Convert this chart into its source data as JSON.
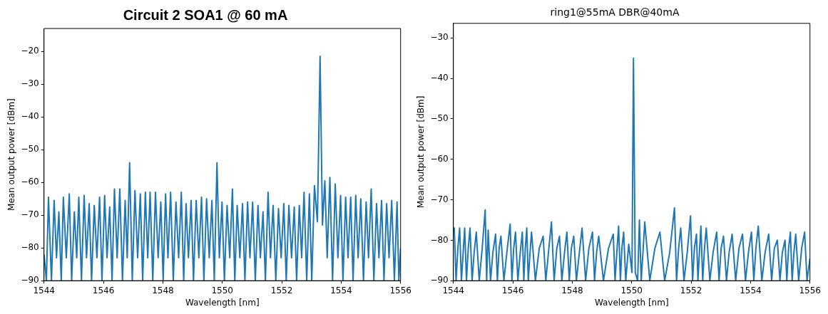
{
  "chart_data": [
    {
      "type": "line",
      "title": "Circuit 2 SOA1 @ 60 mA",
      "xlabel": "Wavelength [nm]",
      "ylabel": "Mean output power [dBm]",
      "xlim": [
        1544,
        1556
      ],
      "xticks": [
        1544,
        1546,
        1548,
        1550,
        1552,
        1554,
        1556
      ],
      "ylim": [
        -90,
        -13
      ],
      "yticks": [
        {
          "value": -90,
          "label": "−90"
        },
        {
          "value": -80,
          "label": "−80"
        },
        {
          "value": -70,
          "label": "−70"
        },
        {
          "value": -60,
          "label": "−60"
        },
        {
          "value": -50,
          "label": "−50"
        },
        {
          "value": -40,
          "label": "−40"
        },
        {
          "value": -30,
          "label": "−30"
        },
        {
          "value": -20,
          "label": "−20"
        }
      ],
      "marker": "none",
      "line_style": "solid",
      "series": [
        {
          "color": "#1f77b4",
          "x": [
            1544.0,
            1544.08,
            1544.15,
            1544.25,
            1544.34,
            1544.42,
            1544.5,
            1544.58,
            1544.65,
            1544.75,
            1544.85,
            1544.93,
            1545.02,
            1545.1,
            1545.17,
            1545.26,
            1545.35,
            1545.43,
            1545.52,
            1545.6,
            1545.69,
            1545.78,
            1545.87,
            1545.95,
            1546.04,
            1546.12,
            1546.21,
            1546.29,
            1546.37,
            1546.46,
            1546.55,
            1546.64,
            1546.73,
            1546.8,
            1546.88,
            1546.97,
            1547.06,
            1547.15,
            1547.24,
            1547.32,
            1547.41,
            1547.49,
            1547.57,
            1547.66,
            1547.75,
            1547.84,
            1547.93,
            1548.01,
            1548.09,
            1548.17,
            1548.26,
            1548.35,
            1548.44,
            1548.53,
            1548.62,
            1548.7,
            1548.78,
            1548.86,
            1548.95,
            1549.03,
            1549.12,
            1549.21,
            1549.3,
            1549.38,
            1549.47,
            1549.56,
            1549.65,
            1549.73,
            1549.82,
            1549.9,
            1549.99,
            1550.07,
            1550.16,
            1550.25,
            1550.34,
            1550.42,
            1550.5,
            1550.59,
            1550.68,
            1550.76,
            1550.85,
            1550.93,
            1551.02,
            1551.11,
            1551.2,
            1551.28,
            1551.37,
            1551.45,
            1551.54,
            1551.62,
            1551.71,
            1551.8,
            1551.89,
            1551.98,
            1552.07,
            1552.15,
            1552.24,
            1552.33,
            1552.42,
            1552.5,
            1552.59,
            1552.67,
            1552.75,
            1552.84,
            1552.93,
            1553.01,
            1553.1,
            1553.2,
            1553.29,
            1553.37,
            1553.45,
            1553.53,
            1553.62,
            1553.71,
            1553.8,
            1553.89,
            1553.98,
            1554.06,
            1554.15,
            1554.23,
            1554.32,
            1554.4,
            1554.49,
            1554.57,
            1554.66,
            1554.75,
            1554.84,
            1554.92,
            1555.01,
            1555.1,
            1555.19,
            1555.27,
            1555.36,
            1555.44,
            1555.53,
            1555.61,
            1555.7,
            1555.79,
            1555.88,
            1555.94,
            1556.0
          ],
          "values": [
            -82,
            -90,
            -64.5,
            -90,
            -65.5,
            -83,
            -69,
            -90,
            -64.5,
            -83,
            -63.5,
            -90,
            -69,
            -83,
            -64.5,
            -90,
            -64,
            -83,
            -66.5,
            -90,
            -67,
            -83,
            -64.5,
            -90,
            -64,
            -83,
            -67.5,
            -90,
            -62,
            -83,
            -62,
            -90,
            -65.5,
            -83,
            -54,
            -90,
            -62.5,
            -83,
            -63.5,
            -90,
            -63,
            -83,
            -63,
            -90,
            -63,
            -83,
            -66,
            -90,
            -63.5,
            -83,
            -63,
            -90,
            -66,
            -83,
            -63,
            -90,
            -66.5,
            -83,
            -65.5,
            -90,
            -65.5,
            -83,
            -64.5,
            -90,
            -65,
            -83,
            -65.5,
            -90,
            -54,
            -83,
            -66,
            -90,
            -67,
            -83,
            -62,
            -90,
            -67,
            -83,
            -66.5,
            -90,
            -66,
            -83,
            -66,
            -90,
            -67,
            -83,
            -69,
            -90,
            -63,
            -83,
            -67,
            -90,
            -68,
            -83,
            -66.5,
            -90,
            -67,
            -83,
            -67.5,
            -90,
            -67,
            -83,
            -63,
            -90,
            -63.5,
            -90,
            -61,
            -72,
            -21.5,
            -73,
            -59.5,
            -83,
            -58.5,
            -90,
            -60.5,
            -83,
            -64,
            -90,
            -64.5,
            -83,
            -64.5,
            -90,
            -64,
            -83,
            -65,
            -90,
            -66,
            -83,
            -62,
            -90,
            -66.5,
            -83,
            -65.5,
            -90,
            -66.5,
            -83,
            -65.5,
            -90,
            -66,
            -90,
            -80
          ]
        }
      ]
    },
    {
      "type": "line",
      "title": "ring1@55mA DBR@40mA",
      "xlabel": "Wavelength [nm]",
      "ylabel": "Mean output power [dBm]",
      "xlim": [
        1544,
        1556
      ],
      "xticks": [
        1544,
        1546,
        1548,
        1550,
        1552,
        1554,
        1556
      ],
      "ylim": [
        -90,
        -26.4
      ],
      "yticks": [
        {
          "value": -90,
          "label": "−90"
        },
        {
          "value": -80,
          "label": "−80"
        },
        {
          "value": -70,
          "label": "−70"
        },
        {
          "value": -60,
          "label": "−60"
        },
        {
          "value": -50,
          "label": "−50"
        },
        {
          "value": -40,
          "label": "−40"
        },
        {
          "value": -30,
          "label": "−30"
        }
      ],
      "marker": "none",
      "line_style": "solid",
      "series": [
        {
          "color": "#1f77b4",
          "x": [
            1544.0,
            1544.03,
            1544.09,
            1544.15,
            1544.21,
            1544.27,
            1544.33,
            1544.38,
            1544.44,
            1544.5,
            1544.56,
            1544.63,
            1544.7,
            1544.77,
            1544.87,
            1544.97,
            1545.07,
            1545.12,
            1545.17,
            1545.25,
            1545.33,
            1545.42,
            1545.48,
            1545.54,
            1545.6,
            1545.7,
            1545.8,
            1545.91,
            1545.97,
            1546.03,
            1546.09,
            1546.17,
            1546.25,
            1546.32,
            1546.37,
            1546.42,
            1546.47,
            1546.52,
            1546.58,
            1546.63,
            1546.76,
            1546.89,
            1547.02,
            1547.11,
            1547.2,
            1547.3,
            1547.39,
            1547.48,
            1547.57,
            1547.65,
            1547.74,
            1547.82,
            1547.9,
            1547.97,
            1548.05,
            1548.14,
            1548.24,
            1548.33,
            1548.45,
            1548.56,
            1548.68,
            1548.75,
            1548.82,
            1548.89,
            1549.05,
            1549.22,
            1549.38,
            1549.44,
            1549.5,
            1549.56,
            1549.62,
            1549.67,
            1549.73,
            1549.8,
            1549.9,
            1550.01,
            1550.06,
            1550.12,
            1550.2,
            1550.26,
            1550.32,
            1550.38,
            1550.44,
            1550.61,
            1550.78,
            1550.95,
            1551.11,
            1551.28,
            1551.44,
            1551.51,
            1551.58,
            1551.65,
            1551.76,
            1551.87,
            1551.98,
            1552.05,
            1552.11,
            1552.18,
            1552.23,
            1552.28,
            1552.33,
            1552.39,
            1552.45,
            1552.51,
            1552.63,
            1552.74,
            1552.86,
            1552.94,
            1553.01,
            1553.09,
            1553.19,
            1553.28,
            1553.38,
            1553.5,
            1553.61,
            1553.73,
            1553.83,
            1553.93,
            1554.03,
            1554.11,
            1554.18,
            1554.26,
            1554.38,
            1554.49,
            1554.61,
            1554.71,
            1554.8,
            1554.9,
            1554.99,
            1555.07,
            1555.16,
            1555.22,
            1555.28,
            1555.34,
            1555.4,
            1555.46,
            1555.52,
            1555.62,
            1555.72,
            1555.82,
            1555.9,
            1556.0
          ],
          "values": [
            -78,
            -77,
            -90,
            -82,
            -77,
            -90,
            -83,
            -77,
            -90,
            -82,
            -77,
            -90,
            -83,
            -78,
            -90,
            -82,
            -72.5,
            -90,
            -77.5,
            -90,
            -83,
            -78.5,
            -90,
            -82,
            -79,
            -90,
            -83,
            -76,
            -90,
            -82,
            -78,
            -90,
            -83,
            -78,
            -90,
            -82,
            -77,
            -90,
            -83,
            -78,
            -90,
            -82,
            -79,
            -90,
            -83,
            -75.5,
            -90,
            -82,
            -79,
            -90,
            -83,
            -78,
            -90,
            -82,
            -79,
            -90,
            -83,
            -77,
            -90,
            -82,
            -78,
            -90,
            -83,
            -79,
            -90,
            -82,
            -78.5,
            -90,
            -83,
            -76.5,
            -90,
            -82,
            -78,
            -90,
            -81,
            -88,
            -35,
            -88,
            -90,
            -75,
            -90,
            -83,
            -75.5,
            -90,
            -82,
            -78,
            -90,
            -83,
            -72,
            -90,
            -82,
            -77,
            -90,
            -83,
            -74,
            -90,
            -82,
            -78.5,
            -90,
            -83,
            -76.5,
            -90,
            -82,
            -77,
            -90,
            -83,
            -78,
            -90,
            -82,
            -79,
            -90,
            -83,
            -78.5,
            -90,
            -82,
            -78.5,
            -90,
            -83,
            -78,
            -90,
            -82,
            -76.5,
            -90,
            -83,
            -78.5,
            -90,
            -82,
            -80,
            -90,
            -83,
            -80,
            -90,
            -82,
            -78,
            -90,
            -83,
            -78.5,
            -90,
            -82,
            -78,
            -90,
            -84.5
          ]
        }
      ]
    }
  ]
}
